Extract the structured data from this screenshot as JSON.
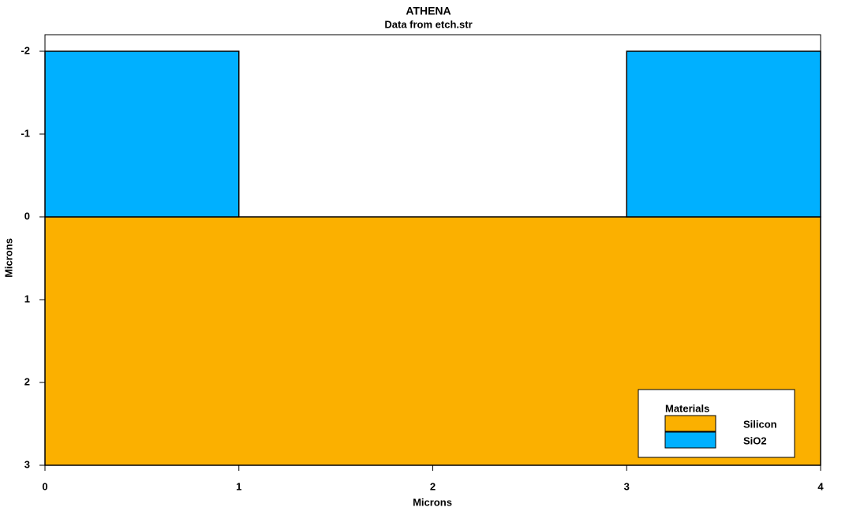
{
  "chart_data": {
    "type": "region",
    "title": "ATHENA",
    "subtitle": "Data from etch.str",
    "x_label": "Microns",
    "y_label": "Microns",
    "xlim": [
      0,
      4
    ],
    "ylim": [
      -2.2,
      3
    ],
    "y_inverted": true,
    "xticks": [
      0,
      1,
      2,
      3,
      4
    ],
    "yticks": [
      -2,
      -1,
      0,
      1,
      2,
      3
    ],
    "legend_title": "Materials",
    "legend": "bottom right",
    "series": [
      {
        "name": "Silicon",
        "color": "#fbb000",
        "regions": [
          {
            "x": [
              0,
              4
            ],
            "y": [
              0,
              3
            ]
          }
        ]
      },
      {
        "name": "SiO2",
        "color": "#00b0ff",
        "regions": [
          {
            "x": [
              0,
              1
            ],
            "y": [
              -2,
              0
            ]
          },
          {
            "x": [
              3,
              4
            ],
            "y": [
              -2,
              0
            ]
          }
        ]
      }
    ]
  }
}
